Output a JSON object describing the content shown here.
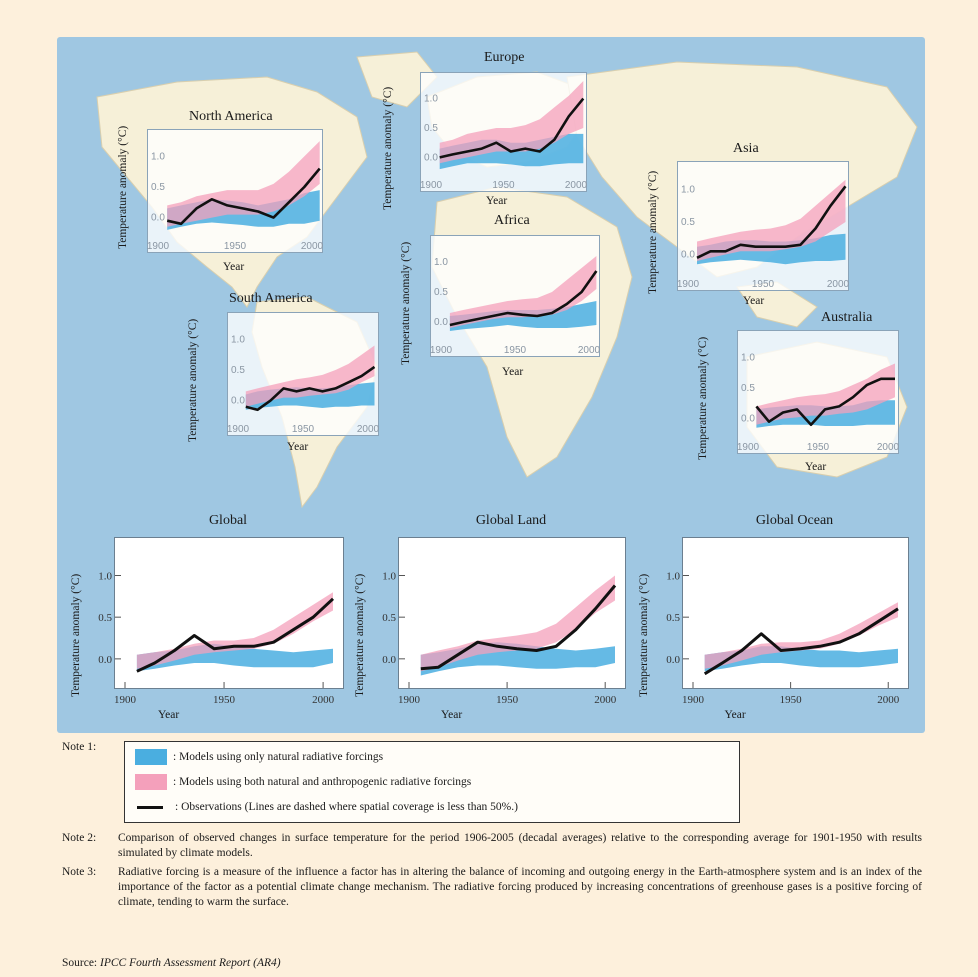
{
  "colors": {
    "natural": "#4aaee0",
    "anthropogenic": "#f4a0bb",
    "observations": "#111111",
    "ocean": "#9fc7e2",
    "land": "#f6f0d8",
    "page": "#fdf0dc"
  },
  "chart_data": [
    {
      "type": "area",
      "title": "North America",
      "ylabel": "Temperature anomaly (°C)",
      "xlabel": "Year",
      "xticks": [
        1900,
        1950,
        2000
      ],
      "yticks": [
        "0.0",
        "0.5",
        "1.0"
      ],
      "xlim": [
        1900,
        2000
      ],
      "ylim": [
        -0.3,
        1.3
      ],
      "x": [
        1906,
        1915,
        1925,
        1935,
        1945,
        1955,
        1965,
        1975,
        1985,
        1995,
        2005
      ],
      "natural_low": [
        -0.2,
        -0.15,
        -0.1,
        -0.08,
        -0.1,
        -0.12,
        -0.15,
        -0.15,
        -0.1,
        -0.1,
        -0.05
      ],
      "natural_high": [
        0.15,
        0.2,
        0.25,
        0.3,
        0.28,
        0.25,
        0.2,
        0.25,
        0.3,
        0.4,
        0.45
      ],
      "anthro_low": [
        -0.15,
        -0.1,
        -0.05,
        0.0,
        0.05,
        0.05,
        0.05,
        0.1,
        0.2,
        0.35,
        0.55
      ],
      "anthro_high": [
        0.2,
        0.25,
        0.35,
        0.4,
        0.45,
        0.45,
        0.45,
        0.55,
        0.75,
        1.0,
        1.25
      ],
      "observations": [
        -0.05,
        -0.1,
        0.15,
        0.3,
        0.2,
        0.15,
        0.1,
        0.0,
        0.25,
        0.5,
        0.8
      ]
    },
    {
      "type": "area",
      "title": "Europe",
      "ylabel": "Temperature anomaly (°C)",
      "xlabel": "Year",
      "xticks": [
        1900,
        1950,
        2000
      ],
      "yticks": [
        "0.0",
        "0.5",
        "1.0"
      ],
      "xlim": [
        1900,
        2000
      ],
      "ylim": [
        -0.3,
        1.3
      ],
      "x": [
        1906,
        1915,
        1925,
        1935,
        1945,
        1955,
        1965,
        1975,
        1985,
        1995,
        2005
      ],
      "natural_low": [
        -0.2,
        -0.15,
        -0.1,
        -0.1,
        -0.1,
        -0.12,
        -0.15,
        -0.15,
        -0.12,
        -0.1,
        -0.1
      ],
      "natural_high": [
        0.15,
        0.2,
        0.25,
        0.3,
        0.3,
        0.25,
        0.25,
        0.3,
        0.35,
        0.4,
        0.4
      ],
      "anthro_low": [
        -0.1,
        -0.05,
        0.0,
        0.05,
        0.1,
        0.1,
        0.1,
        0.15,
        0.25,
        0.4,
        0.5
      ],
      "anthro_high": [
        0.25,
        0.3,
        0.4,
        0.45,
        0.5,
        0.5,
        0.55,
        0.65,
        0.85,
        1.05,
        1.3
      ],
      "observations": [
        0.0,
        0.05,
        0.1,
        0.15,
        0.25,
        0.1,
        0.15,
        0.1,
        0.3,
        0.7,
        1.0
      ]
    },
    {
      "type": "area",
      "title": "Asia",
      "ylabel": "Temperature anomaly (°C)",
      "xlabel": "Year",
      "xticks": [
        1900,
        1950,
        2000
      ],
      "yticks": [
        "0.0",
        "0.5",
        "1.0"
      ],
      "xlim": [
        1900,
        2000
      ],
      "ylim": [
        -0.3,
        1.3
      ],
      "x": [
        1906,
        1915,
        1925,
        1935,
        1945,
        1955,
        1965,
        1975,
        1985,
        1995,
        2005
      ],
      "natural_low": [
        -0.15,
        -0.12,
        -0.1,
        -0.08,
        -0.1,
        -0.12,
        -0.15,
        -0.12,
        -0.1,
        -0.1,
        -0.08
      ],
      "natural_high": [
        0.12,
        0.15,
        0.2,
        0.22,
        0.22,
        0.2,
        0.2,
        0.22,
        0.25,
        0.3,
        0.32
      ],
      "anthro_low": [
        -0.1,
        -0.05,
        0.0,
        0.05,
        0.05,
        0.05,
        0.08,
        0.12,
        0.2,
        0.35,
        0.5
      ],
      "anthro_high": [
        0.2,
        0.25,
        0.3,
        0.35,
        0.38,
        0.4,
        0.45,
        0.55,
        0.75,
        0.95,
        1.15
      ],
      "observations": [
        -0.05,
        0.05,
        0.05,
        0.15,
        0.12,
        0.12,
        0.12,
        0.15,
        0.4,
        0.75,
        1.05
      ]
    },
    {
      "type": "area",
      "title": "Africa",
      "ylabel": "Temperature anomaly (°C)",
      "xlabel": "Year",
      "xticks": [
        1900,
        1950,
        2000
      ],
      "yticks": [
        "0.0",
        "0.5",
        "1.0"
      ],
      "xlim": [
        1900,
        2000
      ],
      "ylim": [
        -0.3,
        1.3
      ],
      "x": [
        1906,
        1915,
        1925,
        1935,
        1945,
        1955,
        1965,
        1975,
        1985,
        1995,
        2005
      ],
      "natural_low": [
        -0.15,
        -0.12,
        -0.1,
        -0.08,
        -0.05,
        -0.08,
        -0.1,
        -0.1,
        -0.1,
        -0.08,
        -0.05
      ],
      "natural_high": [
        0.1,
        0.12,
        0.15,
        0.18,
        0.2,
        0.2,
        0.2,
        0.22,
        0.25,
        0.3,
        0.35
      ],
      "anthro_low": [
        -0.1,
        -0.05,
        0.0,
        0.05,
        0.08,
        0.08,
        0.1,
        0.12,
        0.2,
        0.35,
        0.55
      ],
      "anthro_high": [
        0.15,
        0.2,
        0.25,
        0.3,
        0.35,
        0.38,
        0.4,
        0.5,
        0.7,
        0.9,
        1.1
      ],
      "observations": [
        -0.05,
        0.0,
        0.05,
        0.1,
        0.15,
        0.12,
        0.1,
        0.15,
        0.3,
        0.5,
        0.85
      ]
    },
    {
      "type": "area",
      "title": "South America",
      "ylabel": "Temperature anomaly (°C)",
      "xlabel": "Year",
      "xticks": [
        1900,
        1950,
        2000
      ],
      "yticks": [
        "0.0",
        "0.5",
        "1.0"
      ],
      "xlim": [
        1900,
        2000
      ],
      "ylim": [
        -0.3,
        1.3
      ],
      "x": [
        1906,
        1915,
        1925,
        1935,
        1945,
        1955,
        1965,
        1975,
        1985,
        1995,
        2005
      ],
      "natural_low": [
        -0.15,
        -0.12,
        -0.1,
        -0.08,
        -0.08,
        -0.1,
        -0.12,
        -0.1,
        -0.1,
        -0.08,
        -0.08
      ],
      "natural_high": [
        0.1,
        0.15,
        0.18,
        0.2,
        0.22,
        0.2,
        0.2,
        0.22,
        0.25,
        0.28,
        0.3
      ],
      "anthro_low": [
        -0.1,
        -0.05,
        0.0,
        0.05,
        0.05,
        0.08,
        0.1,
        0.12,
        0.18,
        0.3,
        0.4
      ],
      "anthro_high": [
        0.15,
        0.2,
        0.25,
        0.3,
        0.35,
        0.38,
        0.42,
        0.5,
        0.6,
        0.75,
        0.9
      ],
      "observations": [
        -0.1,
        -0.15,
        0.0,
        0.2,
        0.15,
        0.2,
        0.15,
        0.2,
        0.3,
        0.4,
        0.55
      ]
    },
    {
      "type": "area",
      "title": "Australia",
      "ylabel": "Temperature anomaly (°C)",
      "xlabel": "Year",
      "xticks": [
        1900,
        1950,
        2000
      ],
      "yticks": [
        "0.0",
        "0.5",
        "1.0"
      ],
      "xlim": [
        1900,
        2000
      ],
      "ylim": [
        -0.3,
        1.3
      ],
      "x": [
        1906,
        1915,
        1925,
        1935,
        1945,
        1955,
        1965,
        1975,
        1985,
        1995,
        2005
      ],
      "natural_low": [
        -0.15,
        -0.12,
        -0.1,
        -0.1,
        -0.1,
        -0.12,
        -0.12,
        -0.12,
        -0.1,
        -0.1,
        -0.1
      ],
      "natural_high": [
        0.15,
        0.18,
        0.2,
        0.22,
        0.22,
        0.2,
        0.2,
        0.22,
        0.28,
        0.3,
        0.3
      ],
      "anthro_low": [
        -0.1,
        -0.05,
        0.0,
        0.02,
        0.05,
        0.05,
        0.08,
        0.1,
        0.15,
        0.25,
        0.35
      ],
      "anthro_high": [
        0.2,
        0.25,
        0.3,
        0.35,
        0.38,
        0.4,
        0.45,
        0.55,
        0.65,
        0.8,
        0.9
      ],
      "observations": [
        0.2,
        -0.05,
        0.1,
        0.15,
        -0.1,
        0.15,
        0.2,
        0.35,
        0.55,
        0.65,
        0.65
      ]
    },
    {
      "type": "area",
      "title": "Global",
      "ylabel": "Temperature anomaly (°C)",
      "xlabel": "Year",
      "xticks": [
        1900,
        1950,
        2000
      ],
      "yticks": [
        "0.0",
        "0.5",
        "1.0"
      ],
      "xlim": [
        1900,
        2005
      ],
      "ylim": [
        -0.35,
        1.45
      ],
      "x": [
        1906,
        1915,
        1925,
        1935,
        1945,
        1955,
        1965,
        1975,
        1985,
        1995,
        2005
      ],
      "natural_low": [
        -0.15,
        -0.12,
        -0.08,
        -0.05,
        -0.05,
        -0.08,
        -0.1,
        -0.1,
        -0.1,
        -0.1,
        -0.05
      ],
      "natural_high": [
        0.05,
        0.08,
        0.1,
        0.15,
        0.18,
        0.15,
        0.12,
        0.1,
        0.08,
        0.1,
        0.12
      ],
      "anthro_low": [
        -0.12,
        -0.08,
        -0.02,
        0.05,
        0.08,
        0.1,
        0.12,
        0.18,
        0.3,
        0.45,
        0.58
      ],
      "anthro_high": [
        0.05,
        0.08,
        0.12,
        0.18,
        0.22,
        0.22,
        0.25,
        0.35,
        0.5,
        0.65,
        0.8
      ],
      "observations": [
        -0.15,
        -0.05,
        0.1,
        0.28,
        0.12,
        0.15,
        0.15,
        0.2,
        0.35,
        0.5,
        0.72
      ]
    },
    {
      "type": "area",
      "title": "Global Land",
      "ylabel": "Temperature anomaly (°C)",
      "xlabel": "Year",
      "xticks": [
        1900,
        1950,
        2000
      ],
      "yticks": [
        "0.0",
        "0.5",
        "1.0"
      ],
      "xlim": [
        1900,
        2005
      ],
      "ylim": [
        -0.35,
        1.45
      ],
      "x": [
        1906,
        1915,
        1925,
        1935,
        1945,
        1955,
        1965,
        1975,
        1985,
        1995,
        2005
      ],
      "natural_low": [
        -0.2,
        -0.15,
        -0.1,
        -0.08,
        -0.08,
        -0.1,
        -0.12,
        -0.12,
        -0.1,
        -0.1,
        -0.05
      ],
      "natural_high": [
        0.05,
        0.08,
        0.12,
        0.18,
        0.2,
        0.18,
        0.15,
        0.12,
        0.1,
        0.12,
        0.15
      ],
      "anthro_low": [
        -0.15,
        -0.1,
        -0.02,
        0.05,
        0.08,
        0.1,
        0.12,
        0.2,
        0.35,
        0.55,
        0.7
      ],
      "anthro_high": [
        0.05,
        0.1,
        0.15,
        0.22,
        0.25,
        0.28,
        0.32,
        0.42,
        0.62,
        0.82,
        1.0
      ],
      "observations": [
        -0.12,
        -0.1,
        0.05,
        0.2,
        0.15,
        0.12,
        0.1,
        0.15,
        0.35,
        0.6,
        0.88
      ]
    },
    {
      "type": "area",
      "title": "Global Ocean",
      "ylabel": "Temperature anomaly (°C)",
      "xlabel": "Year",
      "xticks": [
        1900,
        1950,
        2000
      ],
      "yticks": [
        "0.0",
        "0.5",
        "1.0"
      ],
      "xlim": [
        1900,
        2005
      ],
      "ylim": [
        -0.35,
        1.45
      ],
      "x": [
        1906,
        1915,
        1925,
        1935,
        1945,
        1955,
        1965,
        1975,
        1985,
        1995,
        2005
      ],
      "natural_low": [
        -0.15,
        -0.12,
        -0.08,
        -0.05,
        -0.05,
        -0.08,
        -0.1,
        -0.1,
        -0.1,
        -0.08,
        -0.05
      ],
      "natural_high": [
        0.05,
        0.08,
        0.1,
        0.15,
        0.15,
        0.12,
        0.1,
        0.1,
        0.08,
        0.1,
        0.12
      ],
      "anthro_low": [
        -0.12,
        -0.08,
        -0.02,
        0.05,
        0.08,
        0.1,
        0.12,
        0.18,
        0.28,
        0.4,
        0.5
      ],
      "anthro_high": [
        0.05,
        0.08,
        0.12,
        0.18,
        0.2,
        0.2,
        0.22,
        0.3,
        0.42,
        0.55,
        0.68
      ],
      "observations": [
        -0.18,
        -0.05,
        0.1,
        0.3,
        0.1,
        0.12,
        0.15,
        0.2,
        0.3,
        0.45,
        0.6
      ]
    }
  ],
  "legend": {
    "note1_label": "Note 1:",
    "natural": ": Models using only natural radiative forcings",
    "anthropogenic": ": Models using both natural and anthropogenic radiative forcings",
    "observations": ": Observations (Lines are dashed where spatial coverage is less than 50%.)"
  },
  "notes": {
    "note2_label": "Note 2:",
    "note2": "Comparison of observed changes in surface temperature for the period 1906-2005 (decadal averages) relative to the corresponding average for 1901-1950 with results simulated by climate models.",
    "note3_label": "Note 3:",
    "note3": "Radiative forcing is a measure of the influence a factor has in altering the balance of incoming and outgoing energy in the Earth-atmosphere system and is an index of the importance of the factor as a potential climate change mechanism. The radiative forcing produced by increasing concentrations of greenhouse gases is a positive forcing of climate, tending to warm the surface.",
    "source_label": "Source: ",
    "source_title": "IPCC Fourth Assessment Report (AR4)"
  }
}
